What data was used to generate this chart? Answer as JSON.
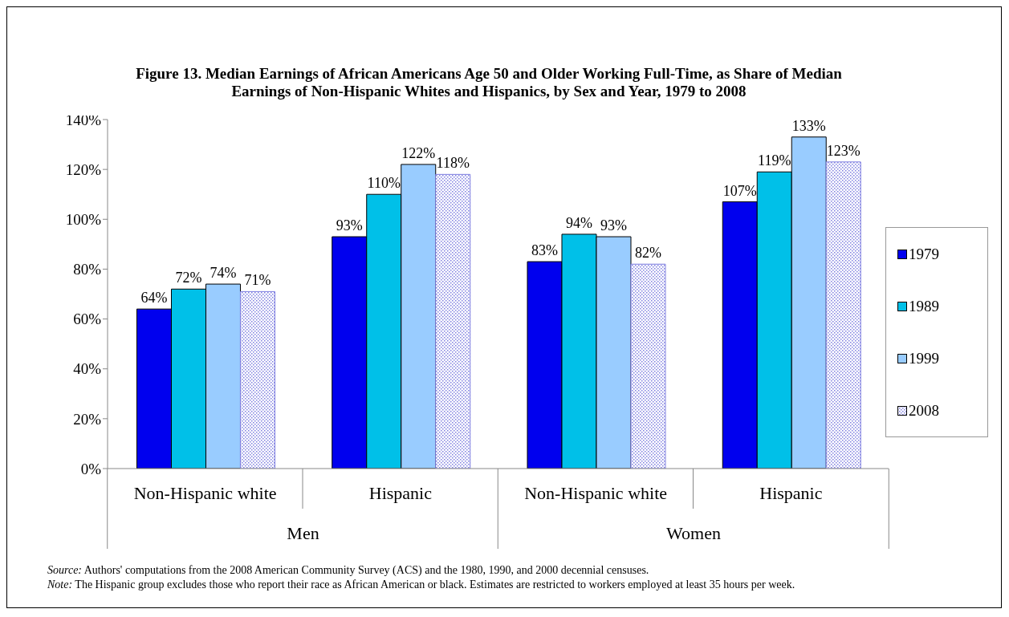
{
  "chart_data": {
    "type": "bar",
    "title": "Figure 13. Median Earnings of African Americans Age 50 and Older Working Full-Time, as Share of Median Earnings of Non-Hispanic Whites and Hispanics, by Sex and Year, 1979 to 2008",
    "categories": [
      "Non-Hispanic white",
      "Hispanic",
      "Non-Hispanic white",
      "Hispanic"
    ],
    "series": [
      {
        "name": "1979",
        "color": "#0000ee",
        "values": [
          64,
          93,
          83,
          107
        ],
        "value_labels": [
          "64%",
          "93%",
          "83%",
          "107%"
        ]
      },
      {
        "name": "1989",
        "color": "#00c0e8",
        "values": [
          72,
          110,
          94,
          119
        ],
        "value_labels": [
          "72%",
          "110%",
          "94%",
          "119%"
        ]
      },
      {
        "name": "1999",
        "color": "#99ccff",
        "values": [
          74,
          122,
          93,
          133
        ],
        "value_labels": [
          "74%",
          "122%",
          "93%",
          "133%"
        ]
      },
      {
        "name": "2008",
        "color": "#7f7fe0",
        "values": [
          71,
          118,
          82,
          123
        ],
        "value_labels": [
          "71%",
          "118%",
          "82%",
          "123%"
        ]
      }
    ],
    "ylim": [
      0,
      140
    ],
    "yticks": [
      {
        "value": 0,
        "label": "0%"
      },
      {
        "value": 20,
        "label": "20%"
      },
      {
        "value": 40,
        "label": "40%"
      },
      {
        "value": 60,
        "label": "60%"
      },
      {
        "value": 80,
        "label": "80%"
      },
      {
        "value": 100,
        "label": "100%"
      },
      {
        "value": 120,
        "label": "120%"
      },
      {
        "value": 140,
        "label": "140%"
      }
    ],
    "annotations": [
      "Men",
      "Women",
      "Source: Authors' computations from the 2008 American Community Survey (ACS) and the 1980, 1990, and 2000 decennial censuses.",
      "Note: The Hispanic group excludes those who report their race as African American or black. Estimates are restricted to workers employed at least 35 hours per week."
    ],
    "legend": "right",
    "grid": false
  }
}
